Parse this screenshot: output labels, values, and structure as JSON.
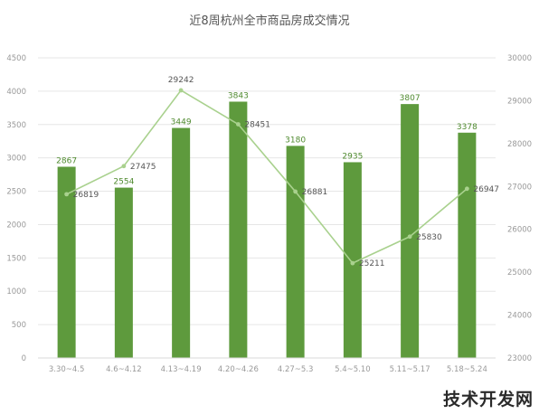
{
  "chart_data": {
    "type": "bar",
    "title": "近8周杭州全市商品房成交情况",
    "categories": [
      "3.30~4.5",
      "4.6~4.12",
      "4.13~4.19",
      "4.20~4.26",
      "4.27~5.3",
      "5.4~5.10",
      "5.11~5.17",
      "5.18~5.24"
    ],
    "series": [
      {
        "type": "bar",
        "axis": "left",
        "color": "#5e9a3d",
        "values": [
          2867,
          2554,
          3449,
          3843,
          3180,
          2935,
          3807,
          3378
        ],
        "labels": [
          "2867",
          "2554",
          "3449",
          "3843",
          "3180",
          "2935",
          "3807",
          "3378"
        ]
      },
      {
        "type": "line",
        "axis": "right",
        "color": "#a9d18e",
        "values": [
          26819,
          27475,
          29242,
          28451,
          26881,
          25211,
          25830,
          26947
        ],
        "labels": [
          "26819",
          "27475",
          "29242",
          "28451",
          "26881",
          "25211",
          "25830",
          "26947"
        ]
      }
    ],
    "y_left": {
      "min": 0,
      "max": 4500,
      "ticks": [
        "0",
        "500",
        "1000",
        "1500",
        "2000",
        "2500",
        "3000",
        "3500",
        "4000",
        "4500"
      ]
    },
    "y_right": {
      "min": 23000,
      "max": 30000,
      "ticks": [
        "23000",
        "24000",
        "25000",
        "26000",
        "27000",
        "28000",
        "29000",
        "30000"
      ]
    },
    "grid": true
  },
  "watermark": {
    "text": "技术开发网",
    "color": "#2a2a2a"
  }
}
